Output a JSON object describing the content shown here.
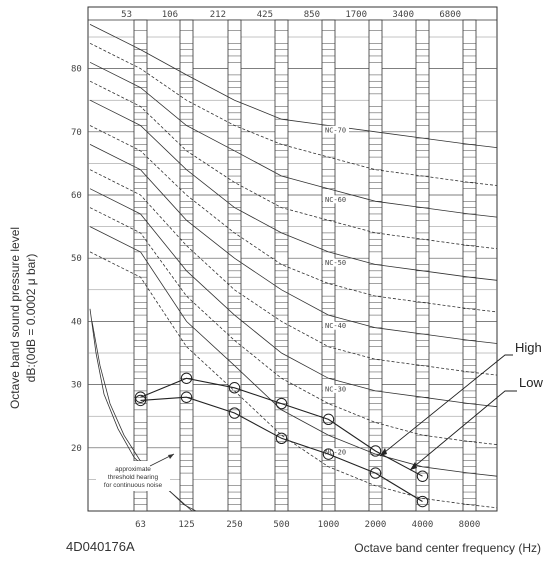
{
  "chart_data": {
    "type": "line",
    "xlabel": "Octave band center frequency (Hz)",
    "ylabel_line1": "Octave band sound pressure level",
    "ylabel_line2": "dB:(0dB = 0.0002 μ bar)",
    "document_code": "4D040176A",
    "x_ticks": [
      "63",
      "125",
      "250",
      "500",
      "1000",
      "2000",
      "4000",
      "8000"
    ],
    "top_band_labels": [
      "53",
      "106",
      "212",
      "425",
      "850",
      "1700",
      "3400",
      "6800"
    ],
    "y_ticks": [
      20,
      30,
      40,
      50,
      60,
      70,
      80
    ],
    "ylim": [
      10,
      90
    ],
    "threshold_note": [
      "approximate",
      "threshold hearing",
      "for continuous noise"
    ],
    "nc_labels": [
      {
        "label": "NC-70",
        "level": 70
      },
      {
        "label": "NC-60",
        "level": 60
      },
      {
        "label": "NC-50",
        "level": 50
      },
      {
        "label": "NC-40",
        "level": 40
      },
      {
        "label": "NC-30",
        "level": 30
      },
      {
        "label": "NC-20",
        "level": 20
      }
    ],
    "series": [
      {
        "name": "High",
        "values": [
          28,
          31,
          29.5,
          27,
          24.5,
          19.5,
          15.5
        ]
      },
      {
        "name": "Low",
        "values": [
          27.5,
          28,
          25.5,
          21.5,
          19,
          16,
          11.5
        ]
      }
    ]
  }
}
